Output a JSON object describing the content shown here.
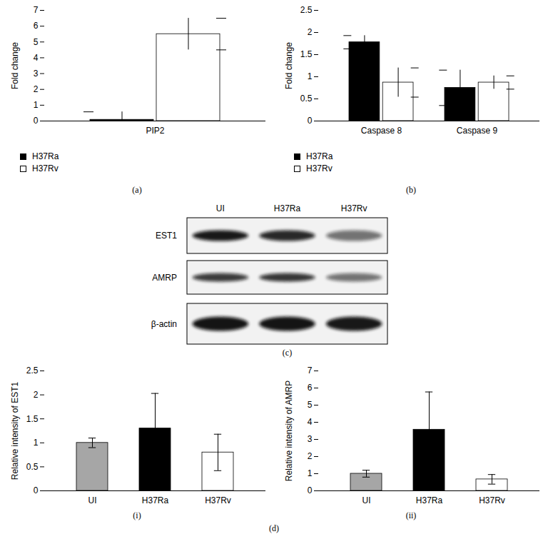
{
  "chart_data": [
    {
      "type": "bar",
      "panel": "(a)",
      "ylabel": "Fold change",
      "categories": [
        "PIP2"
      ],
      "series": [
        {
          "name": "H37Ra",
          "color": "#000000",
          "values": [
            0.08
          ],
          "errors": [
            0.5
          ]
        },
        {
          "name": "H37Rv",
          "color": "#ffffff",
          "values": [
            5.5
          ],
          "errors": [
            1.0
          ]
        }
      ],
      "ylim": [
        0,
        7
      ],
      "yticks": [
        0,
        1,
        2,
        3,
        4,
        5,
        6,
        7
      ],
      "legend": "bottom-left"
    },
    {
      "type": "bar",
      "panel": "(b)",
      "ylabel": "Fold change",
      "categories": [
        "Caspase 8",
        "Caspase 9"
      ],
      "series": [
        {
          "name": "H37Ra",
          "color": "#000000",
          "values": [
            1.78,
            0.75
          ],
          "errors": [
            0.15,
            0.4
          ]
        },
        {
          "name": "H37Rv",
          "color": "#ffffff",
          "values": [
            0.87,
            0.87
          ],
          "errors": [
            0.33,
            0.15
          ]
        }
      ],
      "ylim": [
        0,
        2.5
      ],
      "yticks": [
        0,
        0.5,
        1,
        1.5,
        2,
        2.5
      ],
      "legend": "bottom-left"
    },
    {
      "type": "bar",
      "panel": "(i)",
      "ylabel": "Relative intensity of EST1",
      "categories": [
        "UI",
        "H37Ra",
        "H37Rv"
      ],
      "values": [
        1.0,
        1.3,
        0.8
      ],
      "errors": [
        0.1,
        0.73,
        0.38
      ],
      "colors": [
        "#a6a6a6",
        "#000000",
        "#ffffff"
      ],
      "ylim": [
        0,
        2.5
      ],
      "yticks": [
        0,
        0.5,
        1,
        1.5,
        2,
        2.5
      ]
    },
    {
      "type": "bar",
      "panel": "(ii)",
      "ylabel": "Relative intensity of AMRP",
      "categories": [
        "UI",
        "H37Ra",
        "H37Rv"
      ],
      "values": [
        1.0,
        3.57,
        0.67
      ],
      "errors": [
        0.2,
        2.2,
        0.28
      ],
      "colors": [
        "#a6a6a6",
        "#000000",
        "#ffffff"
      ],
      "ylim": [
        0,
        7
      ],
      "yticks": [
        0,
        1,
        2,
        3,
        4,
        5,
        6,
        7
      ]
    }
  ],
  "blot": {
    "panel": "(c)",
    "lanes": [
      "UI",
      "H37Ra",
      "H37Rv"
    ],
    "proteins": [
      "EST1",
      "AMRP",
      "β-actin"
    ]
  },
  "group_label": "(d)"
}
